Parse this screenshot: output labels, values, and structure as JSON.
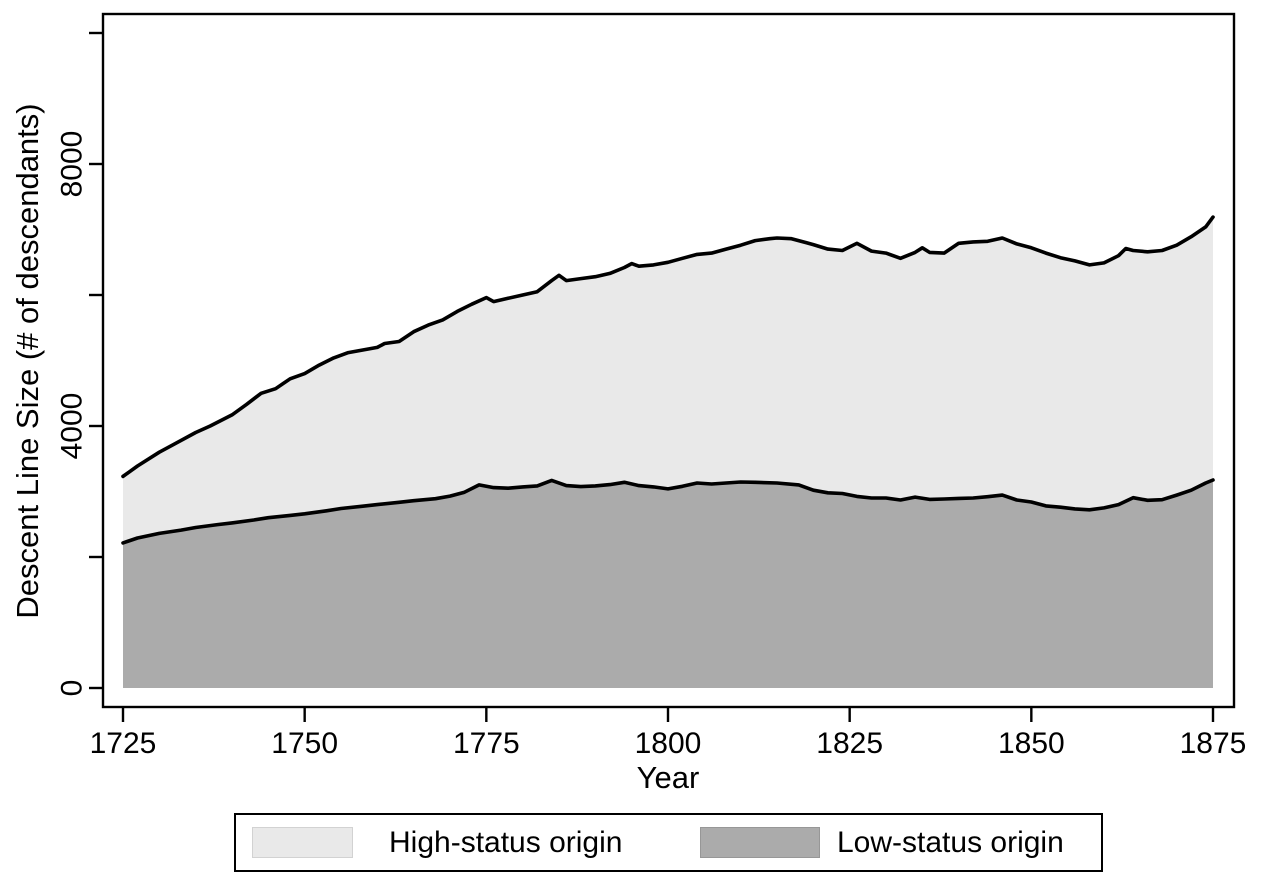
{
  "figure": {
    "background": "#ffffff",
    "frame_color": "#000000"
  },
  "chart_data": {
    "type": "area",
    "stacked": false,
    "layering": "Low-status series filled area is drawn in front of the High-status series filled area; both boundary lines are solid black",
    "title": "",
    "xlabel": "Year",
    "ylabel": "Descent Line Size (# of descendants)",
    "xlim": [
      1722,
      1878
    ],
    "ylim": [
      -300,
      10300
    ],
    "x_ticks": [
      1725,
      1750,
      1775,
      1800,
      1825,
      1850,
      1875
    ],
    "y_ticks_labeled": [
      0,
      4000,
      8000
    ],
    "y_ticks_unlabeled": [
      2000,
      6000,
      10000
    ],
    "grid": false,
    "legend_position": "bottom-center",
    "line_color": "#000000",
    "series": [
      {
        "name": "High-status origin",
        "fill": "#e9e9e9",
        "edge": "#d2d2d2",
        "points": [
          [
            1725,
            3230
          ],
          [
            1727,
            3390
          ],
          [
            1730,
            3600
          ],
          [
            1732,
            3720
          ],
          [
            1735,
            3900
          ],
          [
            1737,
            4000
          ],
          [
            1740,
            4170
          ],
          [
            1742,
            4330
          ],
          [
            1744,
            4500
          ],
          [
            1746,
            4570
          ],
          [
            1748,
            4720
          ],
          [
            1750,
            4800
          ],
          [
            1752,
            4930
          ],
          [
            1754,
            5040
          ],
          [
            1756,
            5120
          ],
          [
            1758,
            5160
          ],
          [
            1760,
            5200
          ],
          [
            1761,
            5260
          ],
          [
            1763,
            5290
          ],
          [
            1765,
            5440
          ],
          [
            1767,
            5540
          ],
          [
            1769,
            5620
          ],
          [
            1771,
            5750
          ],
          [
            1773,
            5860
          ],
          [
            1775,
            5960
          ],
          [
            1776,
            5900
          ],
          [
            1778,
            5950
          ],
          [
            1780,
            6000
          ],
          [
            1782,
            6050
          ],
          [
            1784,
            6220
          ],
          [
            1785,
            6300
          ],
          [
            1786,
            6220
          ],
          [
            1788,
            6250
          ],
          [
            1790,
            6280
          ],
          [
            1792,
            6330
          ],
          [
            1794,
            6420
          ],
          [
            1795,
            6480
          ],
          [
            1796,
            6440
          ],
          [
            1798,
            6460
          ],
          [
            1800,
            6500
          ],
          [
            1802,
            6560
          ],
          [
            1804,
            6620
          ],
          [
            1806,
            6640
          ],
          [
            1808,
            6700
          ],
          [
            1810,
            6760
          ],
          [
            1812,
            6830
          ],
          [
            1814,
            6860
          ],
          [
            1815,
            6870
          ],
          [
            1817,
            6860
          ],
          [
            1819,
            6800
          ],
          [
            1820,
            6770
          ],
          [
            1822,
            6700
          ],
          [
            1824,
            6680
          ],
          [
            1826,
            6790
          ],
          [
            1828,
            6670
          ],
          [
            1830,
            6640
          ],
          [
            1832,
            6560
          ],
          [
            1834,
            6650
          ],
          [
            1835,
            6720
          ],
          [
            1836,
            6650
          ],
          [
            1838,
            6640
          ],
          [
            1840,
            6790
          ],
          [
            1842,
            6810
          ],
          [
            1844,
            6820
          ],
          [
            1846,
            6870
          ],
          [
            1848,
            6780
          ],
          [
            1850,
            6720
          ],
          [
            1852,
            6640
          ],
          [
            1854,
            6570
          ],
          [
            1856,
            6520
          ],
          [
            1858,
            6460
          ],
          [
            1860,
            6490
          ],
          [
            1862,
            6600
          ],
          [
            1863,
            6710
          ],
          [
            1864,
            6680
          ],
          [
            1866,
            6660
          ],
          [
            1868,
            6680
          ],
          [
            1870,
            6760
          ],
          [
            1872,
            6890
          ],
          [
            1874,
            7040
          ],
          [
            1875,
            7190
          ]
        ]
      },
      {
        "name": "Low-status origin",
        "fill": "#ababab",
        "edge": "#979797",
        "points": [
          [
            1725,
            2215
          ],
          [
            1727,
            2290
          ],
          [
            1730,
            2360
          ],
          [
            1733,
            2410
          ],
          [
            1735,
            2450
          ],
          [
            1738,
            2495
          ],
          [
            1740,
            2520
          ],
          [
            1743,
            2565
          ],
          [
            1745,
            2600
          ],
          [
            1748,
            2635
          ],
          [
            1750,
            2660
          ],
          [
            1753,
            2705
          ],
          [
            1755,
            2740
          ],
          [
            1758,
            2775
          ],
          [
            1760,
            2800
          ],
          [
            1763,
            2835
          ],
          [
            1765,
            2860
          ],
          [
            1768,
            2890
          ],
          [
            1770,
            2930
          ],
          [
            1772,
            2990
          ],
          [
            1774,
            3100
          ],
          [
            1776,
            3060
          ],
          [
            1778,
            3050
          ],
          [
            1780,
            3070
          ],
          [
            1782,
            3085
          ],
          [
            1784,
            3170
          ],
          [
            1786,
            3090
          ],
          [
            1788,
            3075
          ],
          [
            1790,
            3085
          ],
          [
            1792,
            3105
          ],
          [
            1794,
            3140
          ],
          [
            1796,
            3090
          ],
          [
            1798,
            3070
          ],
          [
            1800,
            3040
          ],
          [
            1802,
            3080
          ],
          [
            1804,
            3130
          ],
          [
            1806,
            3115
          ],
          [
            1808,
            3130
          ],
          [
            1810,
            3145
          ],
          [
            1812,
            3140
          ],
          [
            1815,
            3130
          ],
          [
            1818,
            3100
          ],
          [
            1820,
            3020
          ],
          [
            1822,
            2980
          ],
          [
            1824,
            2970
          ],
          [
            1826,
            2925
          ],
          [
            1828,
            2900
          ],
          [
            1830,
            2900
          ],
          [
            1832,
            2870
          ],
          [
            1834,
            2915
          ],
          [
            1836,
            2880
          ],
          [
            1838,
            2885
          ],
          [
            1840,
            2895
          ],
          [
            1842,
            2900
          ],
          [
            1844,
            2920
          ],
          [
            1846,
            2945
          ],
          [
            1848,
            2870
          ],
          [
            1850,
            2840
          ],
          [
            1852,
            2780
          ],
          [
            1854,
            2760
          ],
          [
            1856,
            2735
          ],
          [
            1858,
            2720
          ],
          [
            1860,
            2750
          ],
          [
            1862,
            2800
          ],
          [
            1864,
            2905
          ],
          [
            1866,
            2865
          ],
          [
            1868,
            2875
          ],
          [
            1870,
            2945
          ],
          [
            1872,
            3020
          ],
          [
            1874,
            3130
          ],
          [
            1875,
            3175
          ]
        ]
      }
    ]
  }
}
